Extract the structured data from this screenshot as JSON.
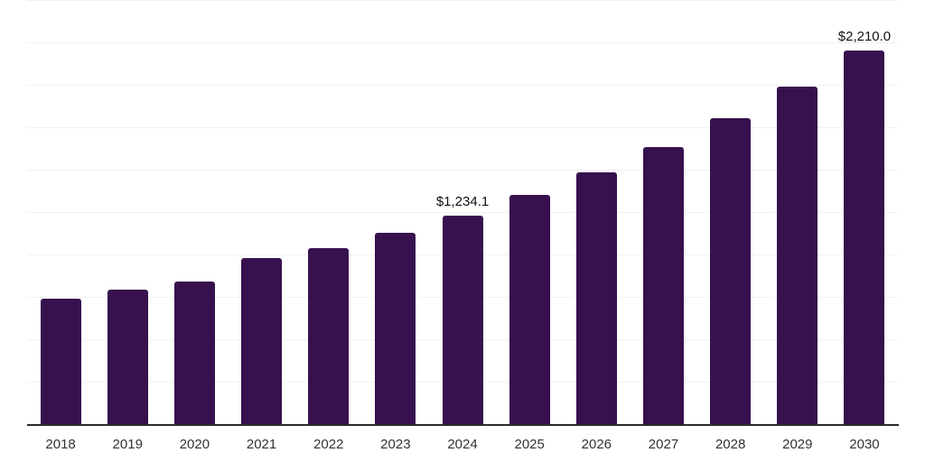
{
  "chart_data": {
    "type": "bar",
    "title": "",
    "xlabel": "",
    "ylabel": "",
    "categories": [
      "2018",
      "2019",
      "2020",
      "2021",
      "2022",
      "2023",
      "2024",
      "2025",
      "2026",
      "2027",
      "2028",
      "2029",
      "2030"
    ],
    "values": [
      745,
      800,
      848,
      985,
      1042,
      1134,
      1234.1,
      1358,
      1488,
      1636,
      1810,
      1996,
      2210
    ],
    "data_labels": [
      null,
      null,
      null,
      null,
      null,
      null,
      "$1,234.1",
      null,
      null,
      null,
      null,
      null,
      "$2,210.0"
    ],
    "ylim": [
      0,
      2500
    ],
    "gridline_interval": 250,
    "grid": true,
    "legend": false,
    "y_axis_labels_visible": false
  },
  "colors": {
    "bar": "#37114e",
    "gridline": "#f2f2f2",
    "axis_line": "#2b2b2b",
    "data_label": "#111111",
    "tick_label": "#333333",
    "background": "#ffffff"
  }
}
